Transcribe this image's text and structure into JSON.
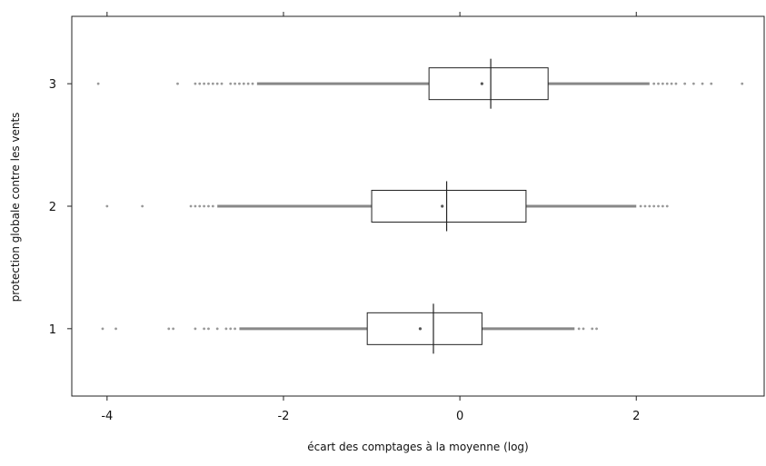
{
  "chart_data": {
    "type": "boxplot",
    "orientation": "horizontal",
    "xlabel": "écart des comptages à la moyenne (log)",
    "ylabel": "protection globale contre les vents",
    "xlim": [
      -4.4,
      3.45
    ],
    "x_ticks": [
      -4,
      -2,
      0,
      2
    ],
    "x_tick_labels": [
      "-4",
      "-2",
      "0",
      "2"
    ],
    "categories": [
      "1",
      "2",
      "3"
    ],
    "grid": false,
    "boxes": [
      {
        "category": "1",
        "whisker_low": -2.5,
        "q1": -1.05,
        "median": -0.3,
        "q3": 0.25,
        "whisker_high": 1.3,
        "mean": -0.45,
        "outliers": [
          -4.05,
          -3.9,
          -3.3,
          -3.25,
          -3.0,
          -2.9,
          -2.85,
          -2.75,
          -2.65,
          -2.6,
          -2.55,
          1.35,
          1.4,
          1.5,
          1.55
        ]
      },
      {
        "category": "2",
        "whisker_low": -2.75,
        "q1": -1.0,
        "median": -0.15,
        "q3": 0.75,
        "whisker_high": 2.0,
        "mean": -0.2,
        "outliers": [
          -4.0,
          -3.6,
          -3.05,
          -3.0,
          -2.95,
          -2.9,
          -2.85,
          -2.8,
          2.05,
          2.1,
          2.15,
          2.2,
          2.25,
          2.3,
          2.35
        ]
      },
      {
        "category": "3",
        "whisker_low": -2.3,
        "q1": -0.35,
        "median": 0.35,
        "q3": 1.0,
        "whisker_high": 2.15,
        "mean": 0.25,
        "outliers": [
          -4.1,
          -3.2,
          -3.0,
          -2.95,
          -2.9,
          -2.85,
          -2.8,
          -2.75,
          -2.7,
          -2.6,
          -2.55,
          -2.5,
          -2.45,
          -2.4,
          -2.35,
          2.2,
          2.25,
          2.3,
          2.35,
          2.4,
          2.45,
          2.55,
          2.65,
          2.75,
          2.85,
          3.2
        ]
      }
    ],
    "colors": {
      "box": "#222222",
      "whisker": "#888888",
      "median": "#222222",
      "point": "#999999"
    }
  }
}
